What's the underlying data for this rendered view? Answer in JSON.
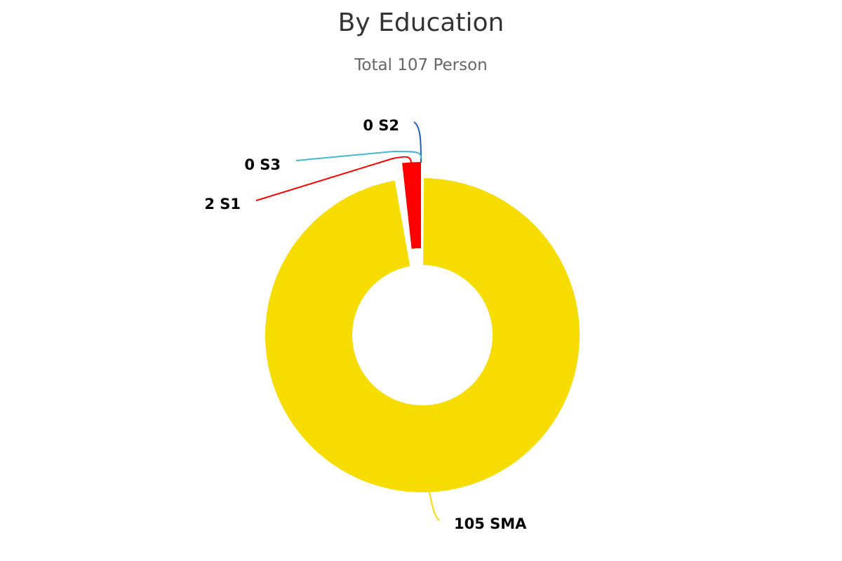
{
  "chart_data": {
    "type": "pie",
    "title": "By Education",
    "subtitle": "Total 107 Person",
    "donut": true,
    "slices": [
      {
        "name": "S1",
        "value": 2,
        "color": "#ff0000",
        "label": "2 S1"
      },
      {
        "name": "S2",
        "value": 0,
        "color": "#1f5fbf",
        "label": "0 S2"
      },
      {
        "name": "S3",
        "value": 0,
        "color": "#44b8cc",
        "label": "0 S3"
      },
      {
        "name": "SMA",
        "value": 105,
        "color": "#f7dc00",
        "label": "105 SMA"
      }
    ]
  }
}
